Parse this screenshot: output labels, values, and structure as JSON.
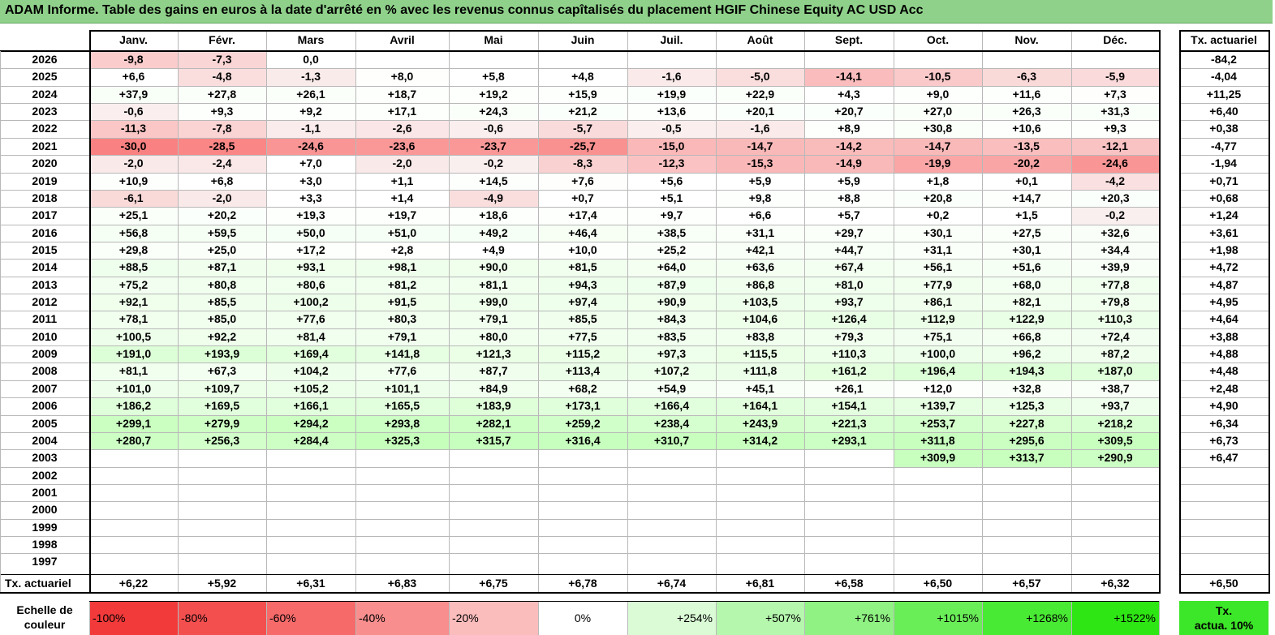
{
  "title": "ADAM Informe. Table des gains en euros à la date d'arrêté en % avec les revenus connus capîtalisés du placement HGIF Chinese Equity AC USD Acc",
  "months": [
    "Janv.",
    "Févr.",
    "Mars",
    "Avril",
    "Mai",
    "Juin",
    "Juil.",
    "Août",
    "Sept.",
    "Oct.",
    "Nov.",
    "Déc."
  ],
  "annual_header": "Tx. actuariel",
  "rows": [
    {
      "year": "2026",
      "values": [
        "-9,8",
        "-7,3",
        "0,0",
        "",
        "",
        "",
        "",
        "",
        "",
        "",
        "",
        ""
      ],
      "annual": "-84,2"
    },
    {
      "year": "2025",
      "values": [
        "+6,6",
        "-4,8",
        "-1,3",
        "+8,0",
        "+5,8",
        "+4,8",
        "-1,6",
        "-5,0",
        "-14,1",
        "-10,5",
        "-6,3",
        "-5,9"
      ],
      "annual": "-4,04"
    },
    {
      "year": "2024",
      "values": [
        "+37,9",
        "+27,8",
        "+26,1",
        "+18,7",
        "+19,2",
        "+15,9",
        "+19,9",
        "+22,9",
        "+4,3",
        "+9,0",
        "+11,6",
        "+7,3"
      ],
      "annual": "+11,25"
    },
    {
      "year": "2023",
      "values": [
        "-0,6",
        "+9,3",
        "+9,2",
        "+17,1",
        "+24,3",
        "+21,2",
        "+13,6",
        "+20,1",
        "+20,7",
        "+27,0",
        "+26,3",
        "+31,3"
      ],
      "annual": "+6,40"
    },
    {
      "year": "2022",
      "values": [
        "-11,3",
        "-7,8",
        "-1,1",
        "-2,6",
        "-0,6",
        "-5,7",
        "-0,5",
        "-1,6",
        "+8,9",
        "+30,8",
        "+10,6",
        "+9,3"
      ],
      "annual": "+0,38"
    },
    {
      "year": "2021",
      "values": [
        "-30,0",
        "-28,5",
        "-24,6",
        "-23,6",
        "-23,7",
        "-25,7",
        "-15,0",
        "-14,7",
        "-14,2",
        "-14,7",
        "-13,5",
        "-12,1"
      ],
      "annual": "-4,77"
    },
    {
      "year": "2020",
      "values": [
        "-2,0",
        "-2,4",
        "+7,0",
        "-2,0",
        "-0,2",
        "-8,3",
        "-12,3",
        "-15,3",
        "-14,9",
        "-19,9",
        "-20,2",
        "-24,6"
      ],
      "annual": "-1,94"
    },
    {
      "year": "2019",
      "values": [
        "+10,9",
        "+6,8",
        "+3,0",
        "+1,1",
        "+14,5",
        "+7,6",
        "+5,6",
        "+5,9",
        "+5,9",
        "+1,8",
        "+0,1",
        "-4,2"
      ],
      "annual": "+0,71"
    },
    {
      "year": "2018",
      "values": [
        "-6,1",
        "-2,0",
        "+3,3",
        "+1,4",
        "-4,9",
        "+0,7",
        "+5,1",
        "+9,8",
        "+8,8",
        "+20,8",
        "+14,7",
        "+20,3"
      ],
      "annual": "+0,68"
    },
    {
      "year": "2017",
      "values": [
        "+25,1",
        "+20,2",
        "+19,3",
        "+19,7",
        "+18,6",
        "+17,4",
        "+9,7",
        "+6,6",
        "+5,7",
        "+0,2",
        "+1,5",
        "-0,2"
      ],
      "annual": "+1,24"
    },
    {
      "year": "2016",
      "values": [
        "+56,8",
        "+59,5",
        "+50,0",
        "+51,0",
        "+49,2",
        "+46,4",
        "+38,5",
        "+31,1",
        "+29,7",
        "+30,1",
        "+27,5",
        "+32,6"
      ],
      "annual": "+3,61"
    },
    {
      "year": "2015",
      "values": [
        "+29,8",
        "+25,0",
        "+17,2",
        "+2,8",
        "+4,9",
        "+10,0",
        "+25,2",
        "+42,1",
        "+44,7",
        "+31,1",
        "+30,1",
        "+34,4"
      ],
      "annual": "+1,98"
    },
    {
      "year": "2014",
      "values": [
        "+88,5",
        "+87,1",
        "+93,1",
        "+98,1",
        "+90,0",
        "+81,5",
        "+64,0",
        "+63,6",
        "+67,4",
        "+56,1",
        "+51,6",
        "+39,9"
      ],
      "annual": "+4,72"
    },
    {
      "year": "2013",
      "values": [
        "+75,2",
        "+80,8",
        "+80,6",
        "+81,2",
        "+81,1",
        "+94,3",
        "+87,9",
        "+86,8",
        "+81,0",
        "+77,9",
        "+68,0",
        "+77,8"
      ],
      "annual": "+4,87"
    },
    {
      "year": "2012",
      "values": [
        "+92,1",
        "+85,5",
        "+100,2",
        "+91,5",
        "+99,0",
        "+97,4",
        "+90,9",
        "+103,5",
        "+93,7",
        "+86,1",
        "+82,1",
        "+79,8"
      ],
      "annual": "+4,95"
    },
    {
      "year": "2011",
      "values": [
        "+78,1",
        "+85,0",
        "+77,6",
        "+80,3",
        "+79,1",
        "+85,5",
        "+84,3",
        "+104,6",
        "+126,4",
        "+112,9",
        "+122,9",
        "+110,3"
      ],
      "annual": "+4,64"
    },
    {
      "year": "2010",
      "values": [
        "+100,5",
        "+92,2",
        "+81,4",
        "+79,1",
        "+80,0",
        "+77,5",
        "+83,5",
        "+83,8",
        "+79,3",
        "+75,1",
        "+66,8",
        "+72,4"
      ],
      "annual": "+3,88"
    },
    {
      "year": "2009",
      "values": [
        "+191,0",
        "+193,9",
        "+169,4",
        "+141,8",
        "+121,3",
        "+115,2",
        "+97,3",
        "+115,5",
        "+110,3",
        "+100,0",
        "+96,2",
        "+87,2"
      ],
      "annual": "+4,88"
    },
    {
      "year": "2008",
      "values": [
        "+81,1",
        "+67,3",
        "+104,2",
        "+77,6",
        "+87,7",
        "+113,4",
        "+107,2",
        "+111,8",
        "+161,2",
        "+196,4",
        "+194,3",
        "+187,0"
      ],
      "annual": "+4,48"
    },
    {
      "year": "2007",
      "values": [
        "+101,0",
        "+109,7",
        "+105,2",
        "+101,1",
        "+84,9",
        "+68,2",
        "+54,9",
        "+45,1",
        "+26,1",
        "+12,0",
        "+32,8",
        "+38,7"
      ],
      "annual": "+2,48"
    },
    {
      "year": "2006",
      "values": [
        "+186,2",
        "+169,5",
        "+166,1",
        "+165,5",
        "+183,9",
        "+173,1",
        "+166,4",
        "+164,1",
        "+154,1",
        "+139,7",
        "+125,3",
        "+93,7"
      ],
      "annual": "+4,90"
    },
    {
      "year": "2005",
      "values": [
        "+299,1",
        "+279,9",
        "+294,2",
        "+293,8",
        "+282,1",
        "+259,2",
        "+238,4",
        "+243,9",
        "+221,3",
        "+253,7",
        "+227,8",
        "+218,2"
      ],
      "annual": "+6,34"
    },
    {
      "year": "2004",
      "values": [
        "+280,7",
        "+256,3",
        "+284,4",
        "+325,3",
        "+315,7",
        "+316,4",
        "+310,7",
        "+314,2",
        "+293,1",
        "+311,8",
        "+295,6",
        "+309,5"
      ],
      "annual": "+6,73"
    },
    {
      "year": "2003",
      "values": [
        "",
        "",
        "",
        "",
        "",
        "",
        "",
        "",
        "",
        "+309,9",
        "+313,7",
        "+290,9"
      ],
      "annual": "+6,47"
    },
    {
      "year": "2002",
      "values": [
        "",
        "",
        "",
        "",
        "",
        "",
        "",
        "",
        "",
        "",
        "",
        ""
      ],
      "annual": ""
    },
    {
      "year": "2001",
      "values": [
        "",
        "",
        "",
        "",
        "",
        "",
        "",
        "",
        "",
        "",
        "",
        ""
      ],
      "annual": ""
    },
    {
      "year": "2000",
      "values": [
        "",
        "",
        "",
        "",
        "",
        "",
        "",
        "",
        "",
        "",
        "",
        ""
      ],
      "annual": ""
    },
    {
      "year": "1999",
      "values": [
        "",
        "",
        "",
        "",
        "",
        "",
        "",
        "",
        "",
        "",
        "",
        ""
      ],
      "annual": ""
    },
    {
      "year": "1998",
      "values": [
        "",
        "",
        "",
        "",
        "",
        "",
        "",
        "",
        "",
        "",
        "",
        ""
      ],
      "annual": ""
    },
    {
      "year": "1997",
      "values": [
        "",
        "",
        "",
        "",
        "",
        "",
        "",
        "",
        "",
        "",
        "",
        ""
      ],
      "annual": ""
    }
  ],
  "footer": {
    "label": "Tx. actuariel",
    "values": [
      "+6,22",
      "+5,92",
      "+6,31",
      "+6,83",
      "+6,75",
      "+6,78",
      "+6,74",
      "+6,81",
      "+6,58",
      "+6,50",
      "+6,57",
      "+6,32"
    ],
    "annual": "+6,50"
  },
  "scale": {
    "label_line1": "Echelle de",
    "label_line2": "couleur",
    "items": [
      {
        "text": "-100%",
        "color": "#f23a3a"
      },
      {
        "text": "-80%",
        "color": "#f44f4f"
      },
      {
        "text": "-60%",
        "color": "#f66a6a"
      },
      {
        "text": "-40%",
        "color": "#f98e8e"
      },
      {
        "text": "-20%",
        "color": "#fbbcbc"
      },
      {
        "text": "0%",
        "color": "#ffffff"
      },
      {
        "text": "+254%",
        "color": "#dafbd6"
      },
      {
        "text": "+507%",
        "color": "#b5f7ad"
      },
      {
        "text": "+761%",
        "color": "#8ff282"
      },
      {
        "text": "+1015%",
        "color": "#6aee58"
      },
      {
        "text": "+1268%",
        "color": "#49ea33"
      },
      {
        "text": "+1522%",
        "color": "#2ee614"
      }
    ],
    "annual_line1": "Tx.",
    "annual_line2": "actua. 10%",
    "annual_color": "#3ce628"
  }
}
